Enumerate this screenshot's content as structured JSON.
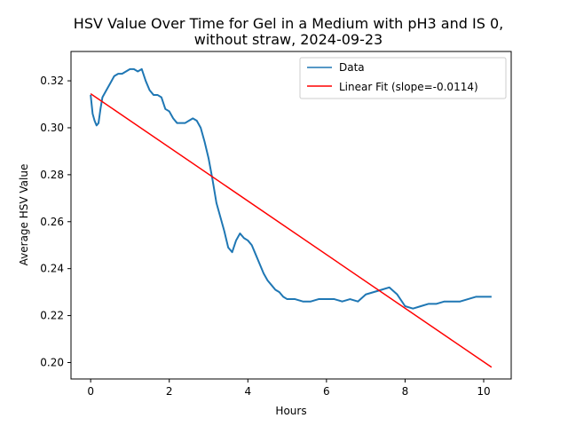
{
  "chart_data": {
    "type": "line",
    "title_line1": "HSV Value Over Time for Gel in a Medium with pH3 and IS 0,",
    "title_line2": "without straw, 2024-09-23",
    "xlabel": "Hours",
    "ylabel": "Average HSV Value",
    "xlim": [
      -0.5,
      10.7
    ],
    "ylim": [
      0.193,
      0.3325
    ],
    "xticks": [
      0,
      2,
      4,
      6,
      8,
      10
    ],
    "yticks": [
      0.2,
      0.22,
      0.24,
      0.26,
      0.28,
      0.3,
      0.32
    ],
    "xtick_labels": [
      "0",
      "2",
      "4",
      "6",
      "8",
      "10"
    ],
    "ytick_labels": [
      "0.20",
      "0.22",
      "0.24",
      "0.26",
      "0.28",
      "0.30",
      "0.32"
    ],
    "legend_position": "upper right",
    "series": [
      {
        "name": "Data",
        "color": "#1f77b4",
        "x": [
          0.0,
          0.05,
          0.1,
          0.15,
          0.2,
          0.25,
          0.3,
          0.4,
          0.5,
          0.6,
          0.7,
          0.8,
          0.9,
          1.0,
          1.1,
          1.2,
          1.3,
          1.4,
          1.5,
          1.6,
          1.7,
          1.8,
          1.9,
          2.0,
          2.1,
          2.2,
          2.3,
          2.4,
          2.5,
          2.6,
          2.7,
          2.8,
          2.9,
          3.0,
          3.1,
          3.2,
          3.3,
          3.4,
          3.5,
          3.6,
          3.7,
          3.8,
          3.9,
          4.0,
          4.1,
          4.2,
          4.3,
          4.4,
          4.5,
          4.6,
          4.7,
          4.8,
          4.9,
          5.0,
          5.2,
          5.4,
          5.6,
          5.8,
          6.0,
          6.2,
          6.4,
          6.6,
          6.8,
          7.0,
          7.2,
          7.4,
          7.6,
          7.8,
          8.0,
          8.2,
          8.4,
          8.6,
          8.8,
          9.0,
          9.2,
          9.4,
          9.6,
          9.8,
          10.0,
          10.2
        ],
        "values": [
          0.314,
          0.306,
          0.303,
          0.301,
          0.302,
          0.308,
          0.313,
          0.316,
          0.319,
          0.322,
          0.323,
          0.323,
          0.324,
          0.325,
          0.325,
          0.324,
          0.325,
          0.32,
          0.316,
          0.314,
          0.314,
          0.313,
          0.308,
          0.307,
          0.304,
          0.302,
          0.302,
          0.302,
          0.303,
          0.304,
          0.303,
          0.3,
          0.294,
          0.287,
          0.278,
          0.268,
          0.262,
          0.256,
          0.249,
          0.247,
          0.252,
          0.255,
          0.253,
          0.252,
          0.25,
          0.246,
          0.242,
          0.238,
          0.235,
          0.233,
          0.231,
          0.23,
          0.228,
          0.227,
          0.227,
          0.226,
          0.226,
          0.227,
          0.227,
          0.227,
          0.226,
          0.227,
          0.226,
          0.229,
          0.23,
          0.231,
          0.232,
          0.229,
          0.224,
          0.223,
          0.224,
          0.225,
          0.225,
          0.226,
          0.226,
          0.226,
          0.227,
          0.228,
          0.228,
          0.228
        ]
      },
      {
        "name": "Linear Fit (slope=-0.0114)",
        "color": "#ff0000",
        "x": [
          0.0,
          10.2
        ],
        "values": [
          0.3145,
          0.198
        ]
      }
    ]
  }
}
